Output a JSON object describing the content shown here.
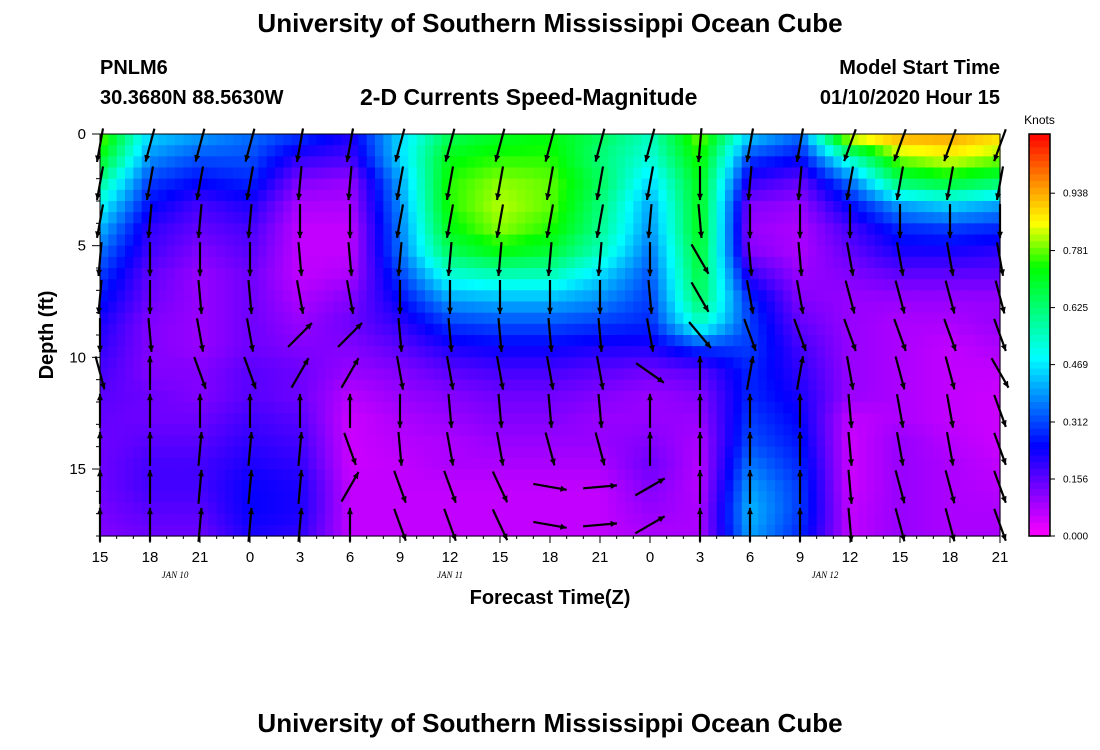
{
  "header": {
    "title": "University of Southern Mississippi Ocean Cube",
    "station": "PNLM6",
    "coordinates": "30.3680N 88.5630W",
    "subtitle": "2-D Currents Speed-Magnitude",
    "model_start_label": "Model Start Time",
    "model_start_value": "01/10/2020 Hour 15"
  },
  "footer": {
    "title": "University of Southern Mississippi Ocean Cube"
  },
  "chart_data": {
    "type": "heatmap",
    "title": "2-D Currents Speed-Magnitude",
    "xlabel": "Forecast Time(Z)",
    "ylabel": "Depth (ft)",
    "x_range_hours": [
      0,
      54
    ],
    "y_range_ft": [
      0,
      18
    ],
    "y_inverted": true,
    "x_ticks": [
      "15",
      "18",
      "21",
      "0",
      "3",
      "6",
      "9",
      "12",
      "15",
      "18",
      "21",
      "0",
      "3",
      "6",
      "9",
      "12",
      "15",
      "18",
      "21"
    ],
    "y_ticks": [
      0,
      5,
      10,
      15
    ],
    "date_labels": [
      {
        "text": "JAN 10",
        "hour": 4.5
      },
      {
        "text": "JAN 11",
        "hour": 21
      },
      {
        "text": "JAN 12",
        "hour": 43.5
      }
    ],
    "colorbar": {
      "label": "Knots",
      "ticks": [
        "0.938",
        "0.781",
        "0.625",
        "0.469",
        "0.312",
        "0.156",
        "0.000"
      ],
      "range": [
        0,
        1.1
      ],
      "colors": [
        "#ff00ff",
        "#8000ff",
        "#0000ff",
        "#0080ff",
        "#00ffff",
        "#00ff80",
        "#00ff00",
        "#ffff00",
        "#ff8000",
        "#ff0000"
      ]
    },
    "speed_knots": [
      [
        0.8,
        0.45,
        0.4,
        0.35,
        0.3,
        0.22,
        0.45,
        0.65,
        0.7,
        0.72,
        0.65,
        0.55,
        0.8,
        0.45,
        0.35,
        0.9,
        0.95,
        0.95,
        0.9
      ],
      [
        0.72,
        0.38,
        0.32,
        0.32,
        0.2,
        0.18,
        0.45,
        0.72,
        0.75,
        0.75,
        0.62,
        0.52,
        0.75,
        0.3,
        0.25,
        0.55,
        0.8,
        0.85,
        0.8
      ],
      [
        0.6,
        0.3,
        0.25,
        0.28,
        0.12,
        0.1,
        0.4,
        0.75,
        0.8,
        0.78,
        0.65,
        0.45,
        0.72,
        0.2,
        0.15,
        0.35,
        0.65,
        0.7,
        0.65
      ],
      [
        0.5,
        0.25,
        0.18,
        0.22,
        0.08,
        0.08,
        0.38,
        0.75,
        0.82,
        0.78,
        0.62,
        0.4,
        0.72,
        0.12,
        0.1,
        0.25,
        0.4,
        0.45,
        0.4
      ],
      [
        0.42,
        0.2,
        0.15,
        0.18,
        0.06,
        0.06,
        0.36,
        0.72,
        0.8,
        0.75,
        0.6,
        0.38,
        0.72,
        0.1,
        0.08,
        0.18,
        0.28,
        0.3,
        0.28
      ],
      [
        0.35,
        0.18,
        0.12,
        0.16,
        0.06,
        0.06,
        0.35,
        0.65,
        0.72,
        0.68,
        0.55,
        0.35,
        0.7,
        0.12,
        0.08,
        0.15,
        0.22,
        0.22,
        0.2
      ],
      [
        0.3,
        0.15,
        0.1,
        0.14,
        0.06,
        0.08,
        0.3,
        0.52,
        0.55,
        0.55,
        0.45,
        0.32,
        0.68,
        0.2,
        0.1,
        0.12,
        0.15,
        0.15,
        0.15
      ],
      [
        0.26,
        0.14,
        0.1,
        0.14,
        0.08,
        0.12,
        0.25,
        0.4,
        0.42,
        0.42,
        0.38,
        0.3,
        0.65,
        0.28,
        0.12,
        0.1,
        0.1,
        0.1,
        0.1
      ],
      [
        0.22,
        0.12,
        0.1,
        0.14,
        0.1,
        0.14,
        0.2,
        0.3,
        0.32,
        0.32,
        0.3,
        0.28,
        0.55,
        0.3,
        0.15,
        0.1,
        0.08,
        0.08,
        0.1
      ],
      [
        0.2,
        0.12,
        0.1,
        0.14,
        0.12,
        0.12,
        0.16,
        0.22,
        0.24,
        0.24,
        0.22,
        0.22,
        0.3,
        0.3,
        0.18,
        0.1,
        0.08,
        0.06,
        0.08
      ],
      [
        0.18,
        0.12,
        0.12,
        0.16,
        0.14,
        0.1,
        0.12,
        0.16,
        0.18,
        0.18,
        0.16,
        0.14,
        0.16,
        0.28,
        0.2,
        0.1,
        0.08,
        0.06,
        0.06
      ],
      [
        0.16,
        0.14,
        0.12,
        0.16,
        0.14,
        0.07,
        0.1,
        0.12,
        0.14,
        0.14,
        0.12,
        0.1,
        0.12,
        0.28,
        0.22,
        0.1,
        0.08,
        0.06,
        0.05
      ],
      [
        0.15,
        0.14,
        0.14,
        0.18,
        0.16,
        0.05,
        0.08,
        0.1,
        0.12,
        0.12,
        0.1,
        0.1,
        0.1,
        0.3,
        0.24,
        0.06,
        0.08,
        0.06,
        0.05
      ],
      [
        0.14,
        0.16,
        0.16,
        0.2,
        0.18,
        0.05,
        0.07,
        0.08,
        0.1,
        0.1,
        0.1,
        0.12,
        0.08,
        0.32,
        0.26,
        0.05,
        0.1,
        0.07,
        0.05
      ],
      [
        0.14,
        0.18,
        0.18,
        0.22,
        0.2,
        0.05,
        0.06,
        0.08,
        0.08,
        0.08,
        0.08,
        0.14,
        0.07,
        0.36,
        0.28,
        0.05,
        0.1,
        0.08,
        0.06
      ],
      [
        0.14,
        0.18,
        0.18,
        0.24,
        0.22,
        0.06,
        0.06,
        0.06,
        0.06,
        0.06,
        0.06,
        0.12,
        0.07,
        0.4,
        0.3,
        0.05,
        0.1,
        0.08,
        0.07
      ],
      [
        0.13,
        0.16,
        0.16,
        0.24,
        0.22,
        0.06,
        0.06,
        0.06,
        0.06,
        0.06,
        0.06,
        0.1,
        0.08,
        0.42,
        0.3,
        0.06,
        0.1,
        0.08,
        0.08
      ],
      [
        0.12,
        0.14,
        0.14,
        0.22,
        0.2,
        0.06,
        0.06,
        0.06,
        0.06,
        0.06,
        0.06,
        0.08,
        0.08,
        0.4,
        0.28,
        0.06,
        0.1,
        0.08,
        0.08
      ]
    ],
    "vectors_direction_deg": [
      [
        190,
        195,
        195,
        195,
        190,
        190,
        195,
        195,
        195,
        195,
        195,
        195,
        185,
        190,
        190,
        200,
        200,
        200,
        200
      ],
      [
        190,
        190,
        190,
        190,
        185,
        185,
        190,
        190,
        190,
        190,
        190,
        190,
        180,
        185,
        185,
        190,
        190,
        190,
        190
      ],
      [
        190,
        185,
        185,
        185,
        180,
        180,
        190,
        190,
        190,
        190,
        190,
        185,
        175,
        180,
        180,
        180,
        180,
        180,
        180
      ],
      [
        185,
        180,
        180,
        180,
        175,
        175,
        185,
        185,
        185,
        185,
        185,
        180,
        150,
        175,
        175,
        170,
        170,
        170,
        170
      ],
      [
        185,
        180,
        175,
        175,
        170,
        170,
        180,
        180,
        180,
        180,
        180,
        175,
        150,
        170,
        170,
        165,
        165,
        165,
        165
      ],
      [
        180,
        175,
        170,
        170,
        45,
        45,
        175,
        175,
        175,
        175,
        175,
        170,
        140,
        160,
        160,
        160,
        160,
        160,
        160
      ],
      [
        165,
        0,
        160,
        160,
        30,
        30,
        170,
        170,
        170,
        170,
        170,
        125,
        0,
        10,
        10,
        170,
        165,
        165,
        150
      ],
      [
        0,
        0,
        0,
        0,
        0,
        0,
        180,
        175,
        175,
        175,
        175,
        0,
        0,
        0,
        0,
        175,
        170,
        170,
        160
      ],
      [
        0,
        0,
        5,
        5,
        5,
        160,
        175,
        170,
        170,
        165,
        165,
        0,
        0,
        0,
        0,
        175,
        170,
        170,
        160
      ],
      [
        0,
        0,
        5,
        5,
        5,
        30,
        160,
        160,
        155,
        100,
        85,
        60,
        0,
        0,
        0,
        175,
        165,
        165,
        160
      ],
      [
        0,
        0,
        5,
        5,
        5,
        0,
        160,
        160,
        155,
        100,
        85,
        60,
        0,
        0,
        0,
        175,
        165,
        165,
        160
      ]
    ]
  }
}
